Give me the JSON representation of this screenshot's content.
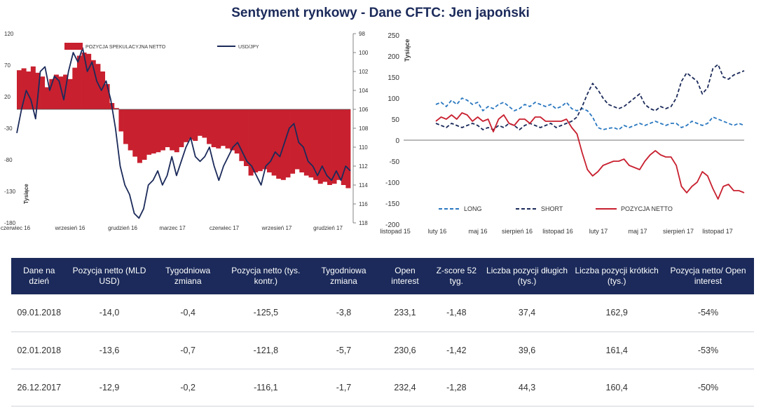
{
  "title": "Sentyment rynkowy - Dane CFTC: Jen japoński",
  "chart_data": [
    {
      "type": "bar",
      "combo_with": "line",
      "left_axis": {
        "ylim": [
          -180,
          120
        ],
        "ticks": [
          120,
          70,
          20,
          -30,
          -80,
          -130,
          -180
        ],
        "ylabel": "Tysiące"
      },
      "right_axis": {
        "ylim": [
          118,
          98
        ],
        "ticks": [
          98,
          100,
          102,
          104,
          106,
          108,
          110,
          112,
          114,
          116,
          118
        ],
        "inverted": true
      },
      "x_ticks": [
        "czerwiec 16",
        "wrzesień 16",
        "grudzień 16",
        "marzec 17",
        "czerwiec 17",
        "wrzesień 17",
        "grudzień 17"
      ],
      "legend": [
        "POZYCJA SPEKULACYJNA NETTO",
        "USD/JPY"
      ],
      "legend_position": "top",
      "colors": {
        "bars": "#c8202f",
        "line": "#1b2a5a"
      },
      "series": [
        {
          "name": "POZYCJA SPEKULACYJNA NETTO",
          "axis": "left",
          "values": [
            62,
            65,
            60,
            68,
            58,
            52,
            35,
            48,
            55,
            52,
            55,
            48,
            66,
            85,
            90,
            88,
            78,
            72,
            60,
            40,
            10,
            2,
            -35,
            -55,
            -65,
            -75,
            -85,
            -80,
            -72,
            -70,
            -68,
            -65,
            -60,
            -65,
            -68,
            -60,
            -52,
            -48,
            -50,
            -42,
            -45,
            -55,
            -60,
            -62,
            -58,
            -62,
            -65,
            -70,
            -82,
            -90,
            -105,
            -100,
            -98,
            -95,
            -100,
            -105,
            -110,
            -112,
            -108,
            -102,
            -95,
            -100,
            -105,
            -108,
            -112,
            -118,
            -115,
            -120,
            -118,
            -112,
            -120,
            -125
          ]
        },
        {
          "name": "USD/JPY",
          "axis": "right",
          "values": [
            108.5,
            106,
            104,
            105,
            107,
            102,
            101.5,
            104,
            102.5,
            103,
            105,
            102,
            100,
            101,
            99.5,
            102,
            101,
            103,
            104,
            103,
            105,
            108,
            112,
            114,
            115,
            117,
            117.5,
            116.5,
            114,
            113.5,
            112.5,
            114,
            113,
            111,
            113,
            111.5,
            110,
            109,
            111,
            111.5,
            111,
            110,
            112,
            113.5,
            112,
            111,
            110,
            109.5,
            110.5,
            111.5,
            112,
            113,
            114,
            112,
            111.5,
            110.5,
            111,
            109.5,
            108,
            107.5,
            109.5,
            110,
            111.5,
            112,
            113,
            112,
            113,
            113.5,
            112.5,
            113.5,
            112,
            112.5
          ]
        }
      ]
    },
    {
      "type": "line",
      "ylim": [
        -200,
        250
      ],
      "y_ticks": [
        250,
        200,
        150,
        100,
        50,
        0,
        -50,
        -100,
        -150,
        -200
      ],
      "ylabel": "Tysiące",
      "x_ticks": [
        "listopad 15",
        "luty 16",
        "maj 16",
        "sierpień 16",
        "listopad 16",
        "luty 17",
        "maj 17",
        "sierpień 17",
        "listopad 17"
      ],
      "legend_position": "bottom",
      "series": [
        {
          "name": "LONG",
          "color": "#2a78c0",
          "dash": true,
          "values": [
            85,
            90,
            80,
            95,
            85,
            100,
            95,
            85,
            90,
            70,
            80,
            75,
            85,
            90,
            80,
            70,
            75,
            85,
            80,
            90,
            85,
            80,
            85,
            75,
            80,
            90,
            75,
            70,
            75,
            70,
            55,
            30,
            25,
            28,
            30,
            25,
            35,
            30,
            35,
            40,
            35,
            40,
            45,
            40,
            35,
            40,
            40,
            30,
            35,
            45,
            40,
            35,
            40,
            55,
            50,
            45,
            40,
            35,
            40,
            35
          ]
        },
        {
          "name": "SHORT",
          "color": "#1b2a5a",
          "dash": true,
          "values": [
            40,
            35,
            30,
            40,
            35,
            30,
            35,
            40,
            35,
            25,
            30,
            25,
            35,
            30,
            40,
            35,
            25,
            35,
            40,
            35,
            30,
            35,
            40,
            30,
            35,
            40,
            45,
            55,
            80,
            110,
            135,
            120,
            100,
            85,
            80,
            75,
            80,
            90,
            100,
            110,
            85,
            75,
            70,
            80,
            75,
            80,
            100,
            140,
            160,
            150,
            140,
            110,
            125,
            170,
            180,
            150,
            145,
            155,
            160,
            165
          ]
        },
        {
          "name": "POZYCJA NETTO",
          "color": "#c8202f",
          "dash": false,
          "values": [
            45,
            55,
            50,
            60,
            50,
            65,
            60,
            45,
            55,
            45,
            50,
            20,
            50,
            60,
            40,
            35,
            50,
            50,
            40,
            55,
            55,
            45,
            45,
            45,
            45,
            50,
            30,
            15,
            -30,
            -70,
            -85,
            -75,
            -60,
            -55,
            -50,
            -50,
            -45,
            -60,
            -65,
            -70,
            -50,
            -35,
            -25,
            -35,
            -40,
            -40,
            -60,
            -110,
            -125,
            -110,
            -100,
            -75,
            -85,
            -115,
            -140,
            -110,
            -105,
            -120,
            -120,
            -125
          ]
        }
      ]
    }
  ],
  "table": {
    "headers": [
      "Dane na dzień",
      "Pozycja netto (MLD USD)",
      "Tygodniowa zmiana",
      "Pozycja netto (tys. kontr.)",
      "Tygodniowa zmiana",
      "Open interest",
      "Z-score 52 tyg.",
      "Liczba pozycji długich (tys.)",
      "Liczba pozycji krótkich (tys.)",
      "Pozycja netto/ Open interest"
    ],
    "rows": [
      [
        "09.01.2018",
        "-14,0",
        "-0,4",
        "-125,5",
        "-3,8",
        "233,1",
        "-1,48",
        "37,4",
        "162,9",
        "-54%"
      ],
      [
        "02.01.2018",
        "-13,6",
        "-0,7",
        "-121,8",
        "-5,7",
        "230,6",
        "-1,42",
        "39,6",
        "161,4",
        "-53%"
      ],
      [
        "26.12.2017",
        "-12,9",
        "-0,2",
        "-116,1",
        "-1,7",
        "232,4",
        "-1,28",
        "44,3",
        "160,4",
        "-50%"
      ]
    ]
  }
}
